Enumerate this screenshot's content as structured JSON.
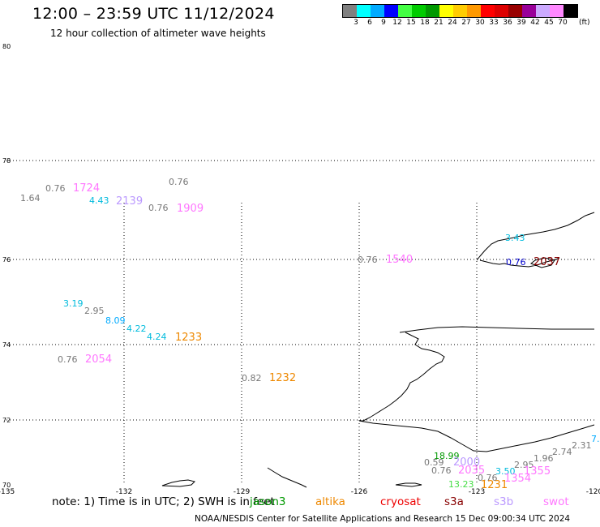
{
  "header": {
    "title": "12:00 – 23:59 UTC 11/12/2024",
    "subtitle": "12 hour collection of altimeter wave heights"
  },
  "legend": {
    "unit": "(ft)",
    "colors": [
      "#808080",
      "#00ffff",
      "#00aaff",
      "#0000ff",
      "#44ff44",
      "#00cc00",
      "#009900",
      "#ffff00",
      "#ffcc00",
      "#ff9900",
      "#ff0000",
      "#dd0000",
      "#990000",
      "#990099",
      "#ccaaff",
      "#ff88ff",
      "#000000"
    ],
    "labels": [
      "3",
      "6",
      "9",
      "12",
      "15",
      "18",
      "21",
      "24",
      "27",
      "30",
      "33",
      "36",
      "39",
      "42",
      "45",
      "70"
    ]
  },
  "axes": {
    "lat_labels": [
      "80",
      "78",
      "76",
      "74",
      "72",
      "70"
    ],
    "lon_labels": [
      "-135",
      "-132",
      "-129",
      "-126",
      "-123",
      "-120"
    ]
  },
  "observations": [
    {
      "text": "1.64",
      "color": "#777777",
      "size": 11
    },
    {
      "text": "0.76",
      "color": "#777777",
      "size": 11
    },
    {
      "text": "1724",
      "color": "#ff77ff",
      "size": 13
    },
    {
      "text": "4.43",
      "color": "#00bbdd",
      "size": 11
    },
    {
      "text": "2139",
      "color": "#bb99ff",
      "size": 13
    },
    {
      "text": "0.76",
      "color": "#777777",
      "size": 11
    },
    {
      "text": "0.76",
      "color": "#777777",
      "size": 11
    },
    {
      "text": "1909",
      "color": "#ff77ff",
      "size": 13
    },
    {
      "text": "0.76",
      "color": "#777777",
      "size": 11
    },
    {
      "text": "1540",
      "color": "#ff77ff",
      "size": 13
    },
    {
      "text": "3.43",
      "color": "#00bbdd",
      "size": 11
    },
    {
      "text": "0.76",
      "color": "#0000cc",
      "size": 11
    },
    {
      "text": "2037",
      "color": "#880000",
      "size": 13
    },
    {
      "text": "3.19",
      "color": "#00bbdd",
      "size": 11
    },
    {
      "text": "2.95",
      "color": "#777777",
      "size": 11
    },
    {
      "text": "8.09",
      "color": "#00aaff",
      "size": 11
    },
    {
      "text": "4.22",
      "color": "#00bbdd",
      "size": 11
    },
    {
      "text": "4.24",
      "color": "#00bbdd",
      "size": 11
    },
    {
      "text": "1233",
      "color": "#ee8800",
      "size": 13
    },
    {
      "text": "0.76",
      "color": "#777777",
      "size": 11
    },
    {
      "text": "2054",
      "color": "#ff77ff",
      "size": 13
    },
    {
      "text": "0.82",
      "color": "#777777",
      "size": 11
    },
    {
      "text": "1232",
      "color": "#ee8800",
      "size": 13
    },
    {
      "text": "18.99",
      "color": "#009900",
      "size": 11
    },
    {
      "text": "0.59",
      "color": "#777777",
      "size": 11
    },
    {
      "text": "2000",
      "color": "#bb99ff",
      "size": 13
    },
    {
      "text": "0.76",
      "color": "#777777",
      "size": 11
    },
    {
      "text": "2035",
      "color": "#ff77ff",
      "size": 13
    },
    {
      "text": "0.76",
      "color": "#777777",
      "size": 11
    },
    {
      "text": "3.50",
      "color": "#00bbdd",
      "size": 11
    },
    {
      "text": "2.95",
      "color": "#777777",
      "size": 11
    },
    {
      "text": "1.96",
      "color": "#777777",
      "size": 11
    },
    {
      "text": "2.74",
      "color": "#777777",
      "size": 11
    },
    {
      "text": "2.31",
      "color": "#777777",
      "size": 11
    },
    {
      "text": "7.",
      "color": "#00aaff",
      "size": 11
    },
    {
      "text": "1355",
      "color": "#ff77ff",
      "size": 13
    },
    {
      "text": "1354",
      "color": "#ff77ff",
      "size": 13
    },
    {
      "text": "13.23",
      "color": "#44dd44",
      "size": 11
    },
    {
      "text": "1231",
      "color": "#ee8800",
      "size": 13
    }
  ],
  "note": {
    "prefix": "note:  1) Time is in UTC;  2) SWH is in feet",
    "satellites": [
      {
        "name": "jason3",
        "color": "#009900"
      },
      {
        "name": "altika",
        "color": "#ee8800"
      },
      {
        "name": "cryosat",
        "color": "#ee0000"
      },
      {
        "name": "s3a",
        "color": "#880000"
      },
      {
        "name": "s3b",
        "color": "#bb99ff"
      },
      {
        "name": "swot",
        "color": "#ff77ff"
      }
    ]
  },
  "credit": "NOAA/NESDIS Center for Satellite Applications and Research      15 Dec 09:00:34 UTC 2024"
}
